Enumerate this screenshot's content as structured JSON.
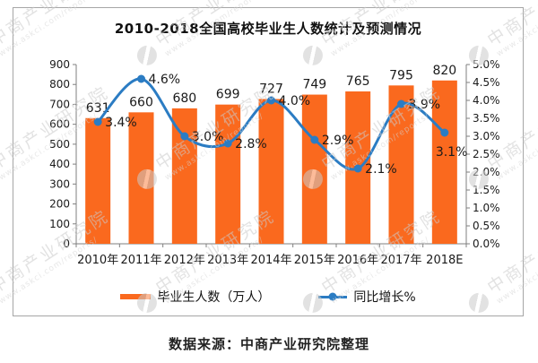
{
  "title": "2010-2018全国高校毕业生人数统计及预测情况",
  "footer": {
    "source_text": "数据来源：中商产业研究院整理"
  },
  "watermark": {
    "brand": "中商产业研究院",
    "url": "www.askci.com/reports/"
  },
  "colors": {
    "bar": "#FA691E",
    "line": "#2B7CC3",
    "axis": "#7f7f7f",
    "text": "#1a1a1a"
  },
  "chart_data": {
    "type": "bar",
    "subtype": "combo-bar-line-dual-axis",
    "title": "2010-2018全国高校毕业生人数统计及预测情况",
    "categories": [
      "2010年",
      "2011年",
      "2012年",
      "2013年",
      "2014年",
      "2015年",
      "2016年",
      "2017年",
      "2018E"
    ],
    "series": [
      {
        "name": "毕业生人数（万人）",
        "type": "bar",
        "axis": "left",
        "values": [
          631,
          660,
          680,
          699,
          727,
          749,
          765,
          795,
          820
        ],
        "labels": [
          "631",
          "660",
          "680",
          "699",
          "727",
          "749",
          "765",
          "795",
          "820"
        ]
      },
      {
        "name": "同比增长%",
        "type": "line",
        "axis": "right",
        "values": [
          3.4,
          4.6,
          3.0,
          2.8,
          4.0,
          2.9,
          2.1,
          3.9,
          3.1
        ],
        "labels": [
          "3.4%",
          "4.6%",
          "3.0%",
          "2.8%",
          "4.0%",
          "2.9%",
          "2.1%",
          "3.9%",
          "3.1%"
        ]
      }
    ],
    "left_axis": {
      "min": 0,
      "max": 900,
      "step": 100,
      "ticks": [
        "0",
        "100",
        "200",
        "300",
        "400",
        "500",
        "600",
        "700",
        "800",
        "900"
      ]
    },
    "right_axis": {
      "min": 0,
      "max": 5,
      "step": 0.5,
      "ticks": [
        "0.0%",
        "0.5%",
        "1.0%",
        "1.5%",
        "2.0%",
        "2.5%",
        "3.0%",
        "3.5%",
        "4.0%",
        "4.5%",
        "5.0%"
      ]
    },
    "grid": false,
    "legend_position": "bottom"
  }
}
